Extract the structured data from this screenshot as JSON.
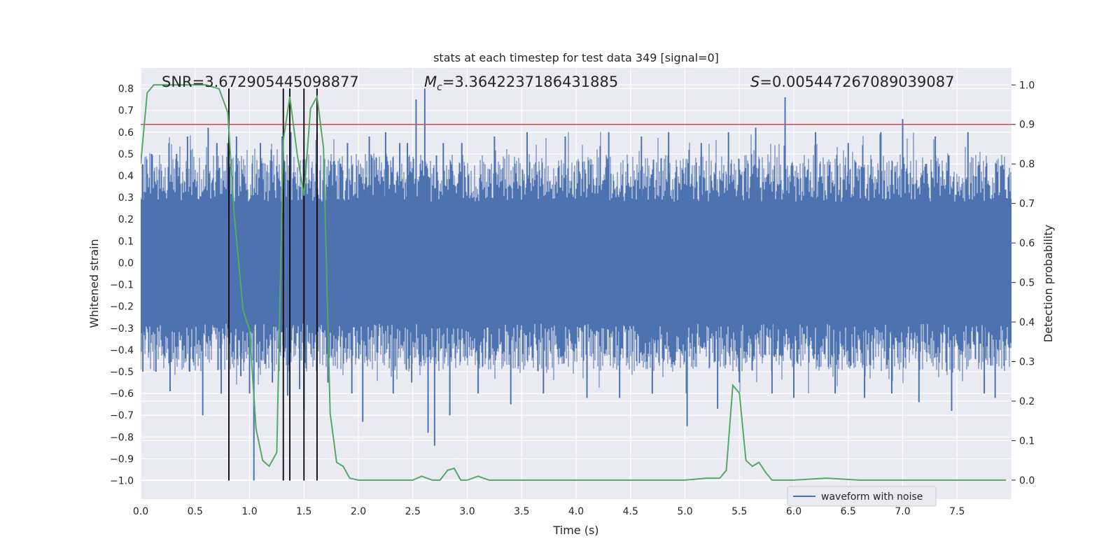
{
  "chart_data": {
    "type": "line",
    "title": "stats at each timestep for test data 349 [signal=0]",
    "xlabel": "Time (s)",
    "ylabel": "Whitened strain",
    "y2label": "Detection probability",
    "xlim": [
      0.0,
      8.0
    ],
    "ylim": [
      -1.085,
      0.895
    ],
    "y2lim": [
      -0.048,
      1.043
    ],
    "xticks": [
      0.0,
      0.5,
      1.0,
      1.5,
      2.0,
      2.5,
      3.0,
      3.5,
      4.0,
      4.5,
      5.0,
      5.5,
      6.0,
      6.5,
      7.0,
      7.5
    ],
    "yticks": [
      0.8,
      0.7,
      0.6,
      0.5,
      0.4,
      0.3,
      0.2,
      0.1,
      0.0,
      -0.1,
      -0.2,
      -0.3,
      -0.4,
      -0.5,
      -0.6,
      -0.7,
      -0.8,
      -0.9,
      -1.0
    ],
    "y2ticks": [
      1.0,
      0.9,
      0.8,
      0.7,
      0.6,
      0.5,
      0.4,
      0.3,
      0.2,
      0.1,
      0.0
    ],
    "grid": true,
    "legend": {
      "position": "lower-right",
      "entries": [
        "waveform with noise"
      ]
    },
    "colors": {
      "waveform": "#4c72b0",
      "probability": "#55a868",
      "threshold": "#c44e52",
      "markers": "#000000",
      "background": "#eaeaf2"
    },
    "annotations": {
      "snr_name": "SNR",
      "snr_value": "=3.672905445098877",
      "mc_symbol": "M",
      "mc_sub": "c",
      "mc_value": "=3.3642237186431885",
      "s_symbol": "S",
      "s_value": "=0.005447267089039087"
    },
    "threshold_probability": 0.9,
    "vertical_markers_x": [
      0.81,
      1.31,
      1.37,
      1.5,
      1.62
    ],
    "waveform_envelope": {
      "series_name": "waveform with noise",
      "band": 0.28,
      "spikes": [
        {
          "x": 0.02,
          "y": 0.45
        },
        {
          "x": 0.02,
          "y": -0.5
        },
        {
          "x": 0.1,
          "y": 0.5
        },
        {
          "x": 0.14,
          "y": -0.5
        },
        {
          "x": 0.26,
          "y": 0.55
        },
        {
          "x": 0.27,
          "y": -0.59
        },
        {
          "x": 0.33,
          "y": 0.5
        },
        {
          "x": 0.43,
          "y": 0.58
        },
        {
          "x": 0.45,
          "y": -0.5
        },
        {
          "x": 0.57,
          "y": -0.7
        },
        {
          "x": 0.62,
          "y": 0.62
        },
        {
          "x": 0.7,
          "y": 0.55
        },
        {
          "x": 0.74,
          "y": -0.6
        },
        {
          "x": 0.8,
          "y": 0.55
        },
        {
          "x": 0.88,
          "y": 0.58
        },
        {
          "x": 0.92,
          "y": -0.52
        },
        {
          "x": 1.0,
          "y": -0.6
        },
        {
          "x": 1.04,
          "y": -1.0
        },
        {
          "x": 1.1,
          "y": 0.55
        },
        {
          "x": 1.2,
          "y": 0.52
        },
        {
          "x": 1.21,
          "y": -0.55
        },
        {
          "x": 1.3,
          "y": 0.58
        },
        {
          "x": 1.35,
          "y": -0.61
        },
        {
          "x": 1.38,
          "y": 0.6
        },
        {
          "x": 1.46,
          "y": -0.58
        },
        {
          "x": 1.5,
          "y": -0.68
        },
        {
          "x": 1.62,
          "y": 0.6
        },
        {
          "x": 1.72,
          "y": -0.55
        },
        {
          "x": 1.9,
          "y": 0.55
        },
        {
          "x": 1.94,
          "y": -0.6
        },
        {
          "x": 2.04,
          "y": -0.73
        },
        {
          "x": 2.1,
          "y": 0.58
        },
        {
          "x": 2.25,
          "y": 0.6
        },
        {
          "x": 2.32,
          "y": -0.6
        },
        {
          "x": 2.38,
          "y": 0.55
        },
        {
          "x": 2.45,
          "y": 0.55
        },
        {
          "x": 2.49,
          "y": -0.55
        },
        {
          "x": 2.53,
          "y": 0.75
        },
        {
          "x": 2.61,
          "y": 0.8
        },
        {
          "x": 2.64,
          "y": -0.78
        },
        {
          "x": 2.7,
          "y": -0.84
        },
        {
          "x": 2.78,
          "y": 0.55
        },
        {
          "x": 2.84,
          "y": -0.7
        },
        {
          "x": 2.95,
          "y": 0.55
        },
        {
          "x": 3.1,
          "y": -0.6
        },
        {
          "x": 3.25,
          "y": 0.58
        },
        {
          "x": 3.4,
          "y": -0.65
        },
        {
          "x": 3.55,
          "y": 0.6
        },
        {
          "x": 3.7,
          "y": -0.6
        },
        {
          "x": 3.9,
          "y": 0.58
        },
        {
          "x": 4.1,
          "y": -0.62
        },
        {
          "x": 4.3,
          "y": 0.6
        },
        {
          "x": 4.4,
          "y": -0.62
        },
        {
          "x": 4.6,
          "y": 0.58
        },
        {
          "x": 4.7,
          "y": -0.6
        },
        {
          "x": 4.85,
          "y": 0.6
        },
        {
          "x": 5.02,
          "y": -0.75
        },
        {
          "x": 5.15,
          "y": 0.55
        },
        {
          "x": 5.3,
          "y": -0.67
        },
        {
          "x": 5.4,
          "y": 0.6
        },
        {
          "x": 5.5,
          "y": -0.55
        },
        {
          "x": 5.65,
          "y": 0.62
        },
        {
          "x": 5.8,
          "y": -0.6
        },
        {
          "x": 5.92,
          "y": 0.76
        },
        {
          "x": 6.0,
          "y": -0.62
        },
        {
          "x": 6.2,
          "y": 0.6
        },
        {
          "x": 6.38,
          "y": -0.6
        },
        {
          "x": 6.5,
          "y": 0.55
        },
        {
          "x": 6.65,
          "y": -0.62
        },
        {
          "x": 6.8,
          "y": 0.6
        },
        {
          "x": 6.9,
          "y": -0.6
        },
        {
          "x": 7.0,
          "y": 0.66
        },
        {
          "x": 7.15,
          "y": -0.64
        },
        {
          "x": 7.3,
          "y": 0.58
        },
        {
          "x": 7.45,
          "y": -0.68
        },
        {
          "x": 7.6,
          "y": 0.6
        },
        {
          "x": 7.75,
          "y": -0.6
        },
        {
          "x": 7.85,
          "y": -0.62
        },
        {
          "x": 7.92,
          "y": 0.45
        }
      ]
    },
    "probability_series": {
      "name": "detection probability",
      "x": [
        0.0,
        0.06,
        0.12,
        0.2,
        0.4,
        0.6,
        0.72,
        0.8,
        0.86,
        0.94,
        1.0,
        1.06,
        1.12,
        1.18,
        1.25,
        1.31,
        1.37,
        1.44,
        1.5,
        1.56,
        1.62,
        1.68,
        1.74,
        1.8,
        1.86,
        1.92,
        2.0,
        2.2,
        2.5,
        2.58,
        2.68,
        2.75,
        2.82,
        2.88,
        2.94,
        3.0,
        3.1,
        3.2,
        3.4,
        3.7,
        4.0,
        4.5,
        5.0,
        5.2,
        5.32,
        5.38,
        5.44,
        5.5,
        5.56,
        5.62,
        5.68,
        5.74,
        5.8,
        6.0,
        6.3,
        6.6,
        7.0,
        7.4,
        7.95
      ],
      "y": [
        0.8,
        0.98,
        1.0,
        1.0,
        1.0,
        1.0,
        0.99,
        0.93,
        0.67,
        0.43,
        0.38,
        0.13,
        0.05,
        0.035,
        0.07,
        0.86,
        0.97,
        0.82,
        0.72,
        0.94,
        0.97,
        0.84,
        0.17,
        0.045,
        0.035,
        0.005,
        0.0,
        0.0,
        0.0,
        0.01,
        0.0,
        0.0,
        0.025,
        0.03,
        0.0,
        0.0,
        0.01,
        0.0,
        0.0,
        0.0,
        0.0,
        0.0,
        0.0,
        0.005,
        0.005,
        0.025,
        0.24,
        0.22,
        0.05,
        0.035,
        0.045,
        0.02,
        0.0,
        0.0,
        0.005,
        0.0,
        0.0,
        0.0,
        0.0
      ]
    }
  }
}
